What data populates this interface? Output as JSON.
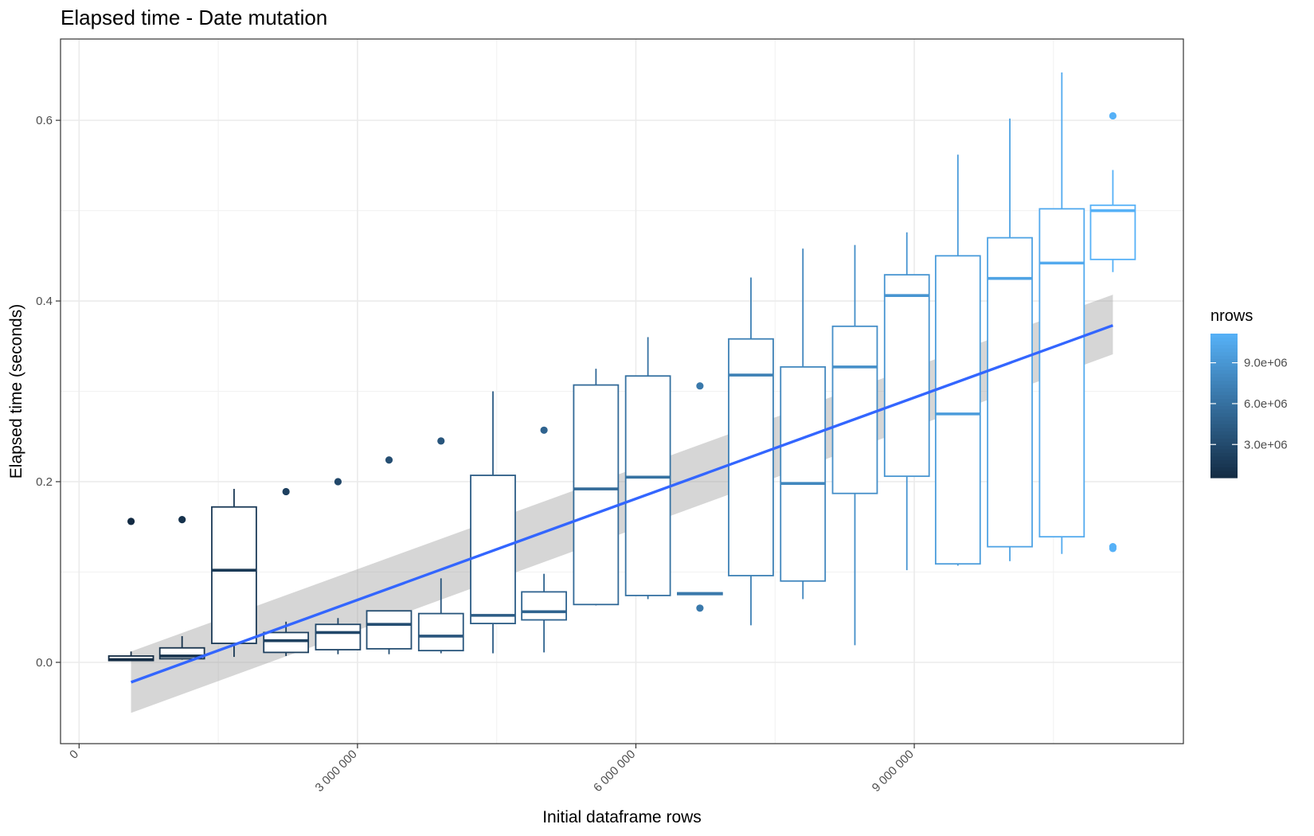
{
  "chart_data": {
    "type": "boxplot",
    "title": "Elapsed time - Date mutation",
    "xlabel": "Initial dataframe rows",
    "ylabel": "Elapsed time (seconds)",
    "xlim": [
      -200000,
      11900000
    ],
    "ylim": [
      -0.09,
      0.69
    ],
    "x_ticks": [
      {
        "value": 0,
        "label": "0"
      },
      {
        "value": 3000000,
        "label": "3 000 000"
      },
      {
        "value": 6000000,
        "label": "6 000 000"
      },
      {
        "value": 9000000,
        "label": "9 000 000"
      }
    ],
    "y_ticks": [
      {
        "value": 0.0,
        "label": "0.0"
      },
      {
        "value": 0.2,
        "label": "0.2"
      },
      {
        "value": 0.4,
        "label": "0.4"
      },
      {
        "value": 0.6,
        "label": "0.6"
      }
    ],
    "grid": true,
    "legend": {
      "title": "nrows",
      "position": "right",
      "type": "colorbar",
      "low_color": "#132b43",
      "high_color": "#56b1f7",
      "range": [
        560000,
        11140000
      ],
      "ticks": [
        {
          "value": 3000000,
          "label": "3.0e+06"
        },
        {
          "value": 6000000,
          "label": "6.0e+06"
        },
        {
          "value": 9000000,
          "label": "9.0e+06"
        }
      ]
    },
    "boxes": [
      {
        "x": 560000,
        "whisker_low": 0.002,
        "q1": 0.002,
        "median": 0.003,
        "q3": 0.007,
        "whisker_high": 0.012,
        "outliers": [
          0.156
        ]
      },
      {
        "x": 1110000,
        "whisker_low": 0.003,
        "q1": 0.004,
        "median": 0.007,
        "q3": 0.016,
        "whisker_high": 0.029,
        "outliers": [
          0.158
        ]
      },
      {
        "x": 1670000,
        "whisker_low": 0.006,
        "q1": 0.021,
        "median": 0.102,
        "q3": 0.172,
        "whisker_high": 0.192,
        "outliers": []
      },
      {
        "x": 2230000,
        "whisker_low": 0.007,
        "q1": 0.011,
        "median": 0.024,
        "q3": 0.033,
        "whisker_high": 0.045,
        "outliers": [
          0.189
        ]
      },
      {
        "x": 2790000,
        "whisker_low": 0.009,
        "q1": 0.014,
        "median": 0.033,
        "q3": 0.042,
        "whisker_high": 0.049,
        "outliers": [
          0.2
        ]
      },
      {
        "x": 3340000,
        "whisker_low": 0.009,
        "q1": 0.015,
        "median": 0.042,
        "q3": 0.057,
        "whisker_high": 0.057,
        "outliers": [
          0.224
        ]
      },
      {
        "x": 3900000,
        "whisker_low": 0.01,
        "q1": 0.013,
        "median": 0.029,
        "q3": 0.054,
        "whisker_high": 0.093,
        "outliers": [
          0.245
        ]
      },
      {
        "x": 4460000,
        "whisker_low": 0.01,
        "q1": 0.043,
        "median": 0.052,
        "q3": 0.207,
        "whisker_high": 0.3,
        "outliers": []
      },
      {
        "x": 5010000,
        "whisker_low": 0.011,
        "q1": 0.047,
        "median": 0.056,
        "q3": 0.078,
        "whisker_high": 0.098,
        "outliers": [
          0.257
        ]
      },
      {
        "x": 5570000,
        "whisker_low": 0.063,
        "q1": 0.064,
        "median": 0.192,
        "q3": 0.307,
        "whisker_high": 0.325,
        "outliers": []
      },
      {
        "x": 6130000,
        "whisker_low": 0.07,
        "q1": 0.074,
        "median": 0.205,
        "q3": 0.317,
        "whisker_high": 0.36,
        "outliers": []
      },
      {
        "x": 6690000,
        "whisker_low": 0.075,
        "q1": 0.075,
        "median": 0.076,
        "q3": 0.077,
        "whisker_high": 0.077,
        "outliers": [
          0.306,
          0.06
        ]
      },
      {
        "x": 7240000,
        "whisker_low": 0.041,
        "q1": 0.096,
        "median": 0.318,
        "q3": 0.358,
        "whisker_high": 0.426,
        "outliers": []
      },
      {
        "x": 7800000,
        "whisker_low": 0.07,
        "q1": 0.09,
        "median": 0.198,
        "q3": 0.327,
        "whisker_high": 0.458,
        "outliers": []
      },
      {
        "x": 8360000,
        "whisker_low": 0.019,
        "q1": 0.187,
        "median": 0.327,
        "q3": 0.372,
        "whisker_high": 0.462,
        "outliers": []
      },
      {
        "x": 8920000,
        "whisker_low": 0.102,
        "q1": 0.206,
        "median": 0.406,
        "q3": 0.429,
        "whisker_high": 0.476,
        "outliers": []
      },
      {
        "x": 9470000,
        "whisker_low": 0.107,
        "q1": 0.109,
        "median": 0.275,
        "q3": 0.45,
        "whisker_high": 0.562,
        "outliers": []
      },
      {
        "x": 10030000,
        "whisker_low": 0.112,
        "q1": 0.128,
        "median": 0.425,
        "q3": 0.47,
        "whisker_high": 0.602,
        "outliers": []
      },
      {
        "x": 10590000,
        "whisker_low": 0.12,
        "q1": 0.139,
        "median": 0.442,
        "q3": 0.502,
        "whisker_high": 0.653,
        "outliers": []
      },
      {
        "x": 11140000,
        "whisker_low": 0.432,
        "q1": 0.446,
        "median": 0.5,
        "q3": 0.506,
        "whisker_high": 0.545,
        "outliers": [
          0.605,
          0.128,
          0.126
        ]
      }
    ],
    "trend": {
      "method": "linear",
      "color": "#3366ff",
      "band_color": "#999999",
      "x": [
        560000,
        11140000
      ],
      "y": [
        -0.022,
        0.373
      ],
      "ci_low": [
        -0.056,
        0.341
      ],
      "ci_high": [
        0.012,
        0.407
      ]
    }
  }
}
